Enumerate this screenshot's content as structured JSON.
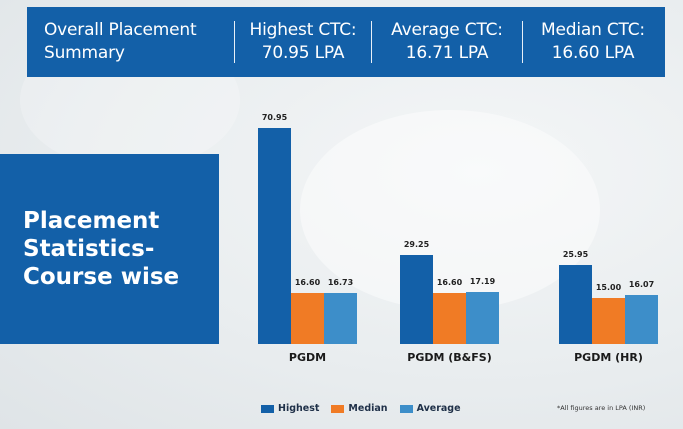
{
  "banner": {
    "title_line1": "Overall Placement",
    "title_line2": "Summary",
    "stats": [
      {
        "label": "Highest CTC:",
        "value": "70.95 LPA"
      },
      {
        "label": "Average CTC:",
        "value": "16.71 LPA"
      },
      {
        "label": "Median CTC:",
        "value": "16.60 LPA"
      }
    ]
  },
  "title_box": {
    "line1": "Placement",
    "line2": "Statistics-",
    "line3": "Course wise"
  },
  "colors": {
    "highest": "#1360a8",
    "median": "#f07b25",
    "average": "#3d8ec9",
    "banner_bg": "#1360a8"
  },
  "chart_data": {
    "type": "bar",
    "title": "Placement Statistics- Course wise",
    "xlabel": "",
    "ylabel": "LPA (INR)",
    "categories": [
      "PGDM",
      "PGDM (B&FS)",
      "PGDM (HR)"
    ],
    "series": [
      {
        "name": "Highest",
        "values": [
          70.95,
          29.25,
          25.95
        ]
      },
      {
        "name": "Median",
        "values": [
          16.6,
          16.6,
          15.0
        ]
      },
      {
        "name": "Average",
        "values": [
          16.73,
          17.19,
          16.07
        ]
      }
    ],
    "value_labels": [
      [
        "70.95",
        "16.60",
        "16.73"
      ],
      [
        "29.25",
        "16.60",
        "17.19"
      ],
      [
        "25.95",
        "15.00",
        "16.07"
      ]
    ],
    "legend": [
      "Highest",
      "Median",
      "Average"
    ],
    "legend_position": "bottom-left",
    "grid": false,
    "note": "*All figures are in LPA (INR)"
  }
}
